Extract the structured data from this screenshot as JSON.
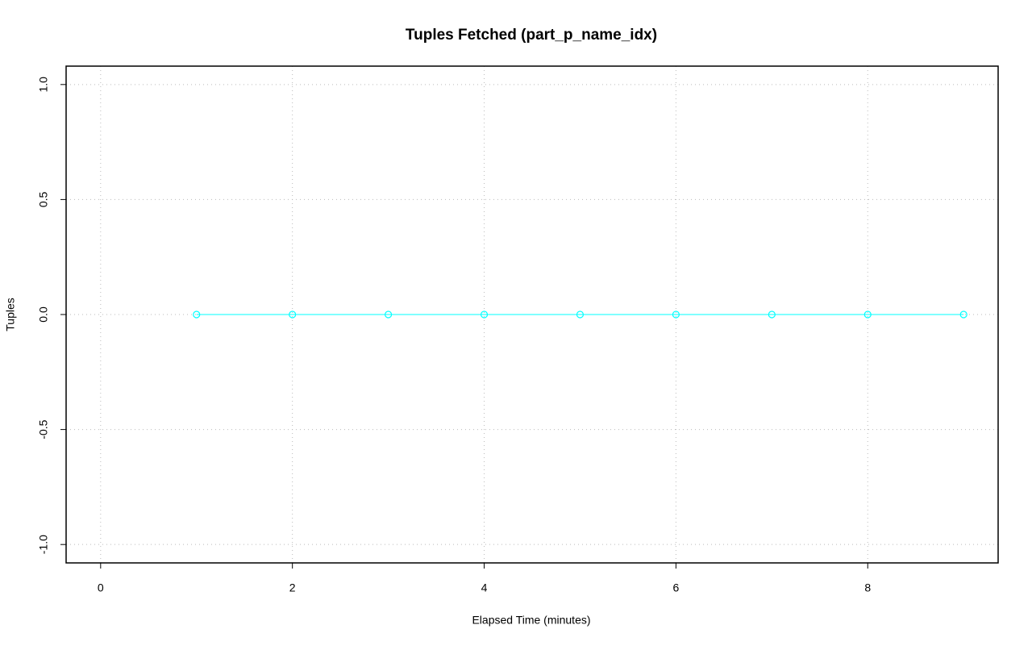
{
  "chart_data": {
    "type": "line",
    "title": "Tuples Fetched (part_p_name_idx)",
    "x_label": "Elapsed Time (minutes)",
    "y_label": "Tuples",
    "x": [
      1,
      2,
      3,
      4,
      5,
      6,
      7,
      8,
      9
    ],
    "series": [
      {
        "name": "part_p_name_idx",
        "color": "#00ffff",
        "values": [
          0,
          0,
          0,
          0,
          0,
          0,
          0,
          0,
          0
        ]
      }
    ],
    "xlim": [
      -0.36,
      9.36
    ],
    "xticks": [
      0,
      2,
      4,
      6,
      8
    ],
    "ylim": [
      -1.08,
      1.08
    ],
    "yticks": [
      {
        "value": -1,
        "label": "-1.0"
      },
      -0.5,
      {
        "value": 0,
        "label": "0.0"
      },
      0.5,
      {
        "value": 1,
        "label": "1.0"
      }
    ],
    "grid": true
  }
}
